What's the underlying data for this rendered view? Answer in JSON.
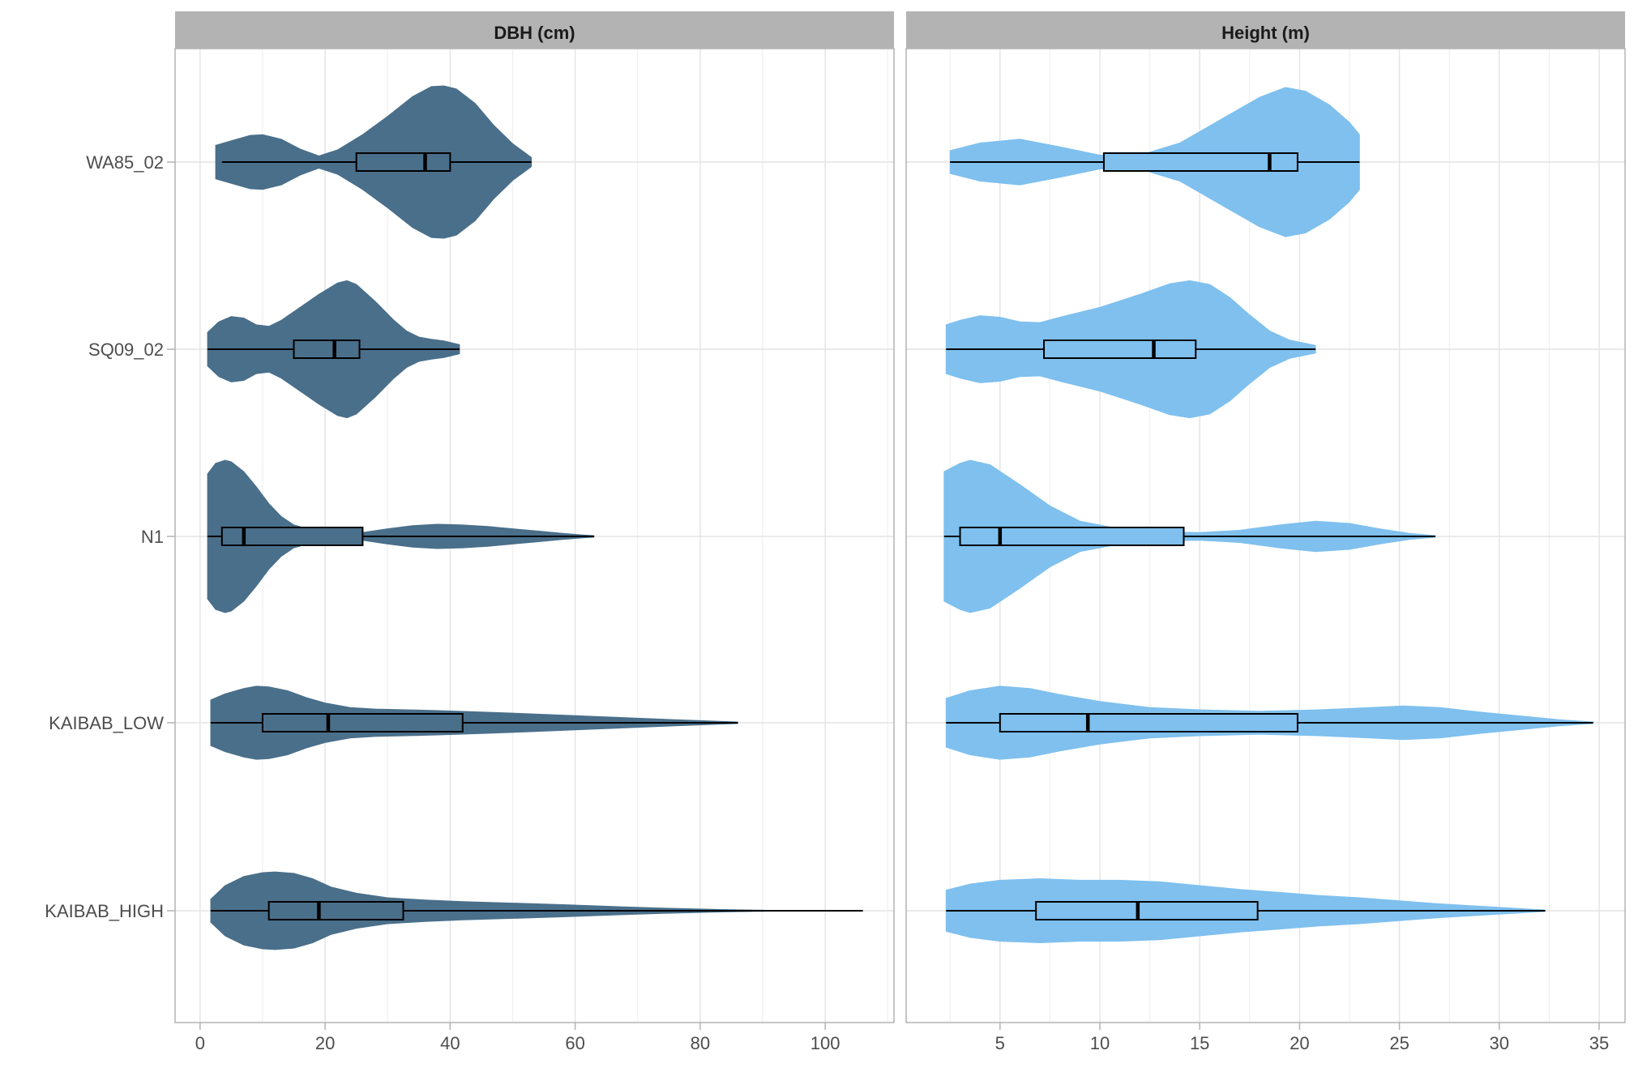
{
  "chart_data": {
    "type": "violin",
    "categories": [
      "WA85_02",
      "SQ09_02",
      "N1",
      "KAIBAB_LOW",
      "KAIBAB_HIGH"
    ],
    "panels": [
      {
        "title": "DBH (cm)",
        "color": "#4a6f8a",
        "xlim": [
          -4,
          111
        ],
        "xticks": [
          0,
          20,
          40,
          60,
          80,
          100
        ],
        "xtick_labels": [
          "0",
          "20",
          "40",
          "60",
          "80",
          "100"
        ],
        "series": [
          {
            "category": "WA85_02",
            "range": [
              2.5,
              53
            ],
            "box": {
              "whisker_low": 3.5,
              "q1": 25,
              "median": 36,
              "q3": 40,
              "whisker_high": 53
            },
            "density": [
              [
                2.5,
                0.22
              ],
              [
                5,
                0.28
              ],
              [
                8,
                0.35
              ],
              [
                10,
                0.36
              ],
              [
                13,
                0.3
              ],
              [
                16,
                0.17
              ],
              [
                19,
                0.08
              ],
              [
                22,
                0.16
              ],
              [
                26,
                0.36
              ],
              [
                30,
                0.6
              ],
              [
                34,
                0.86
              ],
              [
                37,
                0.99
              ],
              [
                39,
                1.0
              ],
              [
                41,
                0.96
              ],
              [
                44,
                0.77
              ],
              [
                47,
                0.48
              ],
              [
                50,
                0.24
              ],
              [
                52,
                0.12
              ],
              [
                53,
                0.06
              ]
            ]
          },
          {
            "category": "SQ09_02",
            "range": [
              1.2,
              41.5
            ],
            "box": {
              "whisker_low": 1.2,
              "q1": 15,
              "median": 21.5,
              "q3": 25.5,
              "whisker_high": 41.5
            },
            "density": [
              [
                1.2,
                0.22
              ],
              [
                3,
                0.36
              ],
              [
                5,
                0.43
              ],
              [
                7,
                0.41
              ],
              [
                9,
                0.32
              ],
              [
                11,
                0.3
              ],
              [
                13,
                0.38
              ],
              [
                16,
                0.55
              ],
              [
                19,
                0.72
              ],
              [
                22,
                0.87
              ],
              [
                23.5,
                0.9
              ],
              [
                25,
                0.85
              ],
              [
                28,
                0.63
              ],
              [
                31,
                0.38
              ],
              [
                33,
                0.24
              ],
              [
                35,
                0.16
              ],
              [
                37,
                0.13
              ],
              [
                39,
                0.11
              ],
              [
                41.5,
                0.06
              ]
            ]
          },
          {
            "category": "N1",
            "range": [
              1.2,
              63
            ],
            "box": {
              "whisker_low": 1.2,
              "q1": 3.5,
              "median": 7,
              "q3": 26,
              "whisker_high": 63
            },
            "density": [
              [
                1.2,
                0.82
              ],
              [
                2.5,
                0.96
              ],
              [
                4,
                1.0
              ],
              [
                5,
                0.98
              ],
              [
                7,
                0.85
              ],
              [
                9,
                0.65
              ],
              [
                11,
                0.43
              ],
              [
                13,
                0.26
              ],
              [
                15,
                0.15
              ],
              [
                18,
                0.08
              ],
              [
                22,
                0.05
              ],
              [
                26,
                0.05
              ],
              [
                30,
                0.1
              ],
              [
                34,
                0.14
              ],
              [
                38,
                0.16
              ],
              [
                42,
                0.15
              ],
              [
                46,
                0.13
              ],
              [
                50,
                0.1
              ],
              [
                54,
                0.07
              ],
              [
                58,
                0.04
              ],
              [
                61,
                0.02
              ],
              [
                63,
                0.01
              ]
            ]
          },
          {
            "category": "KAIBAB_LOW",
            "range": [
              1.7,
              86
            ],
            "box": {
              "whisker_low": 1.7,
              "q1": 10,
              "median": 20.5,
              "q3": 42,
              "whisker_high": 86
            },
            "density": [
              [
                1.7,
                0.3
              ],
              [
                4,
                0.38
              ],
              [
                7,
                0.45
              ],
              [
                9,
                0.48
              ],
              [
                11,
                0.47
              ],
              [
                14,
                0.42
              ],
              [
                17,
                0.33
              ],
              [
                20,
                0.26
              ],
              [
                24,
                0.2
              ],
              [
                28,
                0.18
              ],
              [
                33,
                0.17
              ],
              [
                38,
                0.16
              ],
              [
                45,
                0.14
              ],
              [
                52,
                0.12
              ],
              [
                58,
                0.1
              ],
              [
                64,
                0.08
              ],
              [
                70,
                0.06
              ],
              [
                76,
                0.04
              ],
              [
                81,
                0.025
              ],
              [
                86,
                0.01
              ]
            ]
          },
          {
            "category": "KAIBAB_HIGH",
            "range": [
              1.7,
              106
            ],
            "box": {
              "whisker_low": 1.7,
              "q1": 11,
              "median": 19,
              "q3": 32.5,
              "whisker_high": 106
            },
            "density": [
              [
                1.7,
                0.15
              ],
              [
                4,
                0.33
              ],
              [
                7,
                0.45
              ],
              [
                10,
                0.5
              ],
              [
                12,
                0.51
              ],
              [
                15,
                0.49
              ],
              [
                18,
                0.42
              ],
              [
                21,
                0.31
              ],
              [
                25,
                0.23
              ],
              [
                30,
                0.17
              ],
              [
                36,
                0.14
              ],
              [
                42,
                0.12
              ],
              [
                50,
                0.1
              ],
              [
                58,
                0.08
              ],
              [
                66,
                0.055
              ],
              [
                74,
                0.035
              ],
              [
                80,
                0.022
              ],
              [
                86,
                0.012
              ],
              [
                90,
                0.006
              ],
              [
                92,
                0.003
              ],
              [
                104,
                0.002
              ],
              [
                106,
                0.002
              ]
            ]
          }
        ]
      },
      {
        "title": "Height (m)",
        "color": "#7fc0ee",
        "xlim": [
          0.3,
          36.3
        ],
        "xticks": [
          5,
          10,
          15,
          20,
          25,
          30,
          35
        ],
        "xtick_labels": [
          "5",
          "10",
          "15",
          "20",
          "25",
          "30",
          "35"
        ],
        "series": [
          {
            "category": "WA85_02",
            "range": [
              2.5,
              23
            ],
            "box": {
              "whisker_low": 2.5,
              "q1": 10.2,
              "median": 18.5,
              "q3": 19.9,
              "whisker_high": 23
            },
            "density": [
              [
                2.5,
                0.15
              ],
              [
                4,
                0.25
              ],
              [
                6,
                0.3
              ],
              [
                8,
                0.2
              ],
              [
                10,
                0.09
              ],
              [
                12,
                0.09
              ],
              [
                14,
                0.25
              ],
              [
                16,
                0.55
              ],
              [
                18,
                0.85
              ],
              [
                19.3,
                0.98
              ],
              [
                20.3,
                0.93
              ],
              [
                21.5,
                0.75
              ],
              [
                22.5,
                0.52
              ],
              [
                23,
                0.36
              ]
            ]
          },
          {
            "category": "SQ09_02",
            "range": [
              2.3,
              20.8
            ],
            "box": {
              "whisker_low": 2.3,
              "q1": 7.2,
              "median": 12.7,
              "q3": 14.8,
              "whisker_high": 20.8
            },
            "density": [
              [
                2.3,
                0.32
              ],
              [
                3,
                0.38
              ],
              [
                4,
                0.44
              ],
              [
                5,
                0.42
              ],
              [
                6,
                0.36
              ],
              [
                7,
                0.35
              ],
              [
                8,
                0.42
              ],
              [
                10,
                0.55
              ],
              [
                12,
                0.72
              ],
              [
                13.5,
                0.86
              ],
              [
                14.5,
                0.9
              ],
              [
                15.5,
                0.85
              ],
              [
                16.5,
                0.68
              ],
              [
                17.5,
                0.45
              ],
              [
                18.5,
                0.24
              ],
              [
                19.5,
                0.12
              ],
              [
                20.8,
                0.05
              ]
            ]
          },
          {
            "category": "N1",
            "range": [
              2.2,
              26.8
            ],
            "box": {
              "whisker_low": 2.2,
              "q1": 3,
              "median": 5,
              "q3": 14.2,
              "whisker_high": 26.8
            },
            "density": [
              [
                2.2,
                0.85
              ],
              [
                3,
                0.96
              ],
              [
                3.5,
                1.0
              ],
              [
                4.5,
                0.94
              ],
              [
                6,
                0.68
              ],
              [
                7.5,
                0.4
              ],
              [
                9,
                0.2
              ],
              [
                11,
                0.1
              ],
              [
                13,
                0.06
              ],
              [
                15,
                0.05
              ],
              [
                17,
                0.08
              ],
              [
                19,
                0.15
              ],
              [
                20.8,
                0.2
              ],
              [
                22.5,
                0.17
              ],
              [
                24,
                0.1
              ],
              [
                25.5,
                0.04
              ],
              [
                26.8,
                0.01
              ]
            ]
          },
          {
            "category": "KAIBAB_LOW",
            "range": [
              2.3,
              34.7
            ],
            "box": {
              "whisker_low": 2.3,
              "q1": 5,
              "median": 9.4,
              "q3": 19.9,
              "whisker_high": 34.7
            },
            "density": [
              [
                2.3,
                0.32
              ],
              [
                3.5,
                0.42
              ],
              [
                5,
                0.48
              ],
              [
                6.5,
                0.45
              ],
              [
                8,
                0.37
              ],
              [
                10,
                0.28
              ],
              [
                12.5,
                0.2
              ],
              [
                15,
                0.17
              ],
              [
                18,
                0.15
              ],
              [
                21,
                0.17
              ],
              [
                23.5,
                0.2
              ],
              [
                25.2,
                0.22
              ],
              [
                27,
                0.2
              ],
              [
                29,
                0.14
              ],
              [
                31,
                0.09
              ],
              [
                33,
                0.04
              ],
              [
                34.7,
                0.01
              ]
            ]
          },
          {
            "category": "KAIBAB_HIGH",
            "range": [
              2.3,
              32.3
            ],
            "box": {
              "whisker_low": 2.3,
              "q1": 6.8,
              "median": 11.9,
              "q3": 17.9,
              "whisker_high": 32.3
            },
            "density": [
              [
                2.3,
                0.27
              ],
              [
                3.5,
                0.35
              ],
              [
                5,
                0.4
              ],
              [
                7,
                0.42
              ],
              [
                9,
                0.4
              ],
              [
                11,
                0.4
              ],
              [
                13,
                0.38
              ],
              [
                15,
                0.33
              ],
              [
                17,
                0.28
              ],
              [
                19,
                0.24
              ],
              [
                21,
                0.2
              ],
              [
                23,
                0.17
              ],
              [
                25,
                0.13
              ],
              [
                27,
                0.09
              ],
              [
                29,
                0.06
              ],
              [
                31,
                0.03
              ],
              [
                32.3,
                0.01
              ]
            ]
          }
        ]
      }
    ]
  }
}
